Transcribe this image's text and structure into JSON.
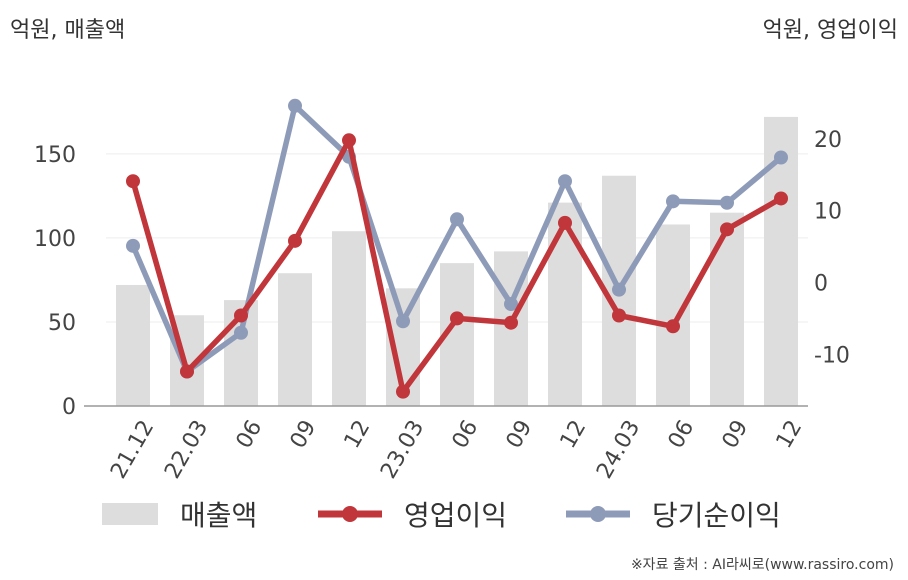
{
  "units": {
    "left": "억원, 매출액",
    "right": "억원, 영업이익"
  },
  "source": "※자료 출처 : AI라씨로(www.rassiro.com)",
  "colors": {
    "revenue": "#dddddd",
    "operating_profit": "#c0363a",
    "net_income": "#8e9bb8",
    "axis": "#999999",
    "grid": "#eeeeee",
    "tick_text": "#444444"
  },
  "chart_data": {
    "type": "bar+line",
    "categories": [
      "21.12",
      "22.03",
      "06",
      "09",
      "12",
      "23.03",
      "06",
      "09",
      "12",
      "24.03",
      "06",
      "09",
      "12"
    ],
    "left_axis": {
      "ticks": [
        0,
        50,
        100,
        150
      ],
      "range": [
        0,
        188
      ]
    },
    "right_axis": {
      "ticks": [
        -10,
        0,
        10,
        20
      ],
      "range": [
        -17.2,
        26.8
      ]
    },
    "series": [
      {
        "name": "매출액",
        "type": "bar",
        "axis": "left",
        "values": [
          72,
          54,
          63,
          79,
          104,
          70,
          85,
          92,
          121,
          137,
          108,
          115,
          172
        ]
      },
      {
        "name": "영업이익",
        "type": "line",
        "axis": "right",
        "values": [
          14.1,
          -12.4,
          -4.6,
          5.8,
          19.8,
          -15.2,
          -5.0,
          -5.6,
          8.3,
          -4.6,
          -6.1,
          7.4,
          11.7
        ]
      },
      {
        "name": "당기순이익",
        "type": "line",
        "axis": "right",
        "values": [
          5.1,
          -12.4,
          -7.0,
          24.6,
          17.5,
          -5.4,
          8.8,
          -3.0,
          14.1,
          -1.0,
          11.3,
          11.1,
          17.4
        ]
      }
    ]
  }
}
